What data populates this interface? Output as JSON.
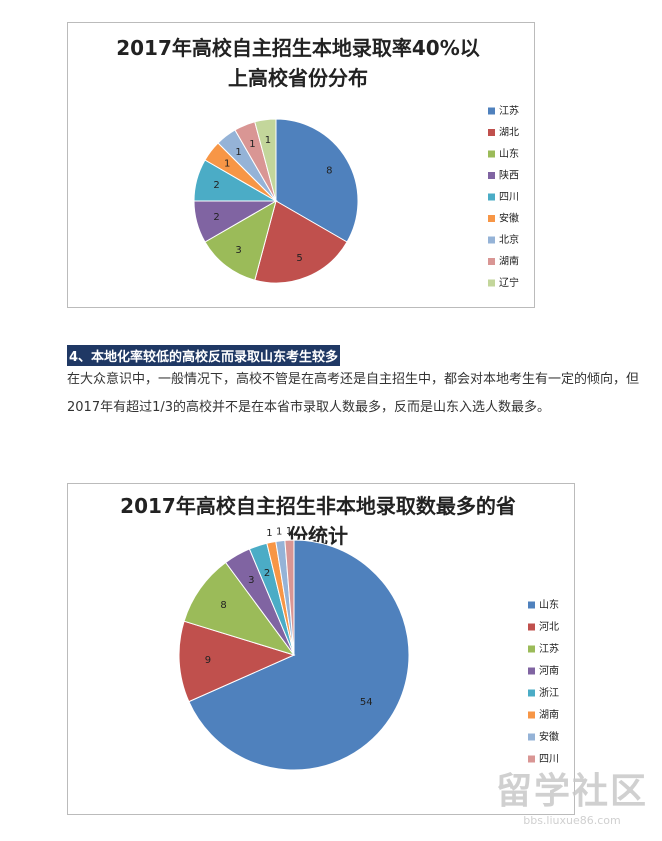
{
  "chart_data": [
    {
      "type": "pie",
      "title": "2017年高校自主招生本地录取率40%以上高校省份分布",
      "categories": [
        "江苏",
        "湖北",
        "山东",
        "陕西",
        "四川",
        "安徽",
        "北京",
        "湖南",
        "辽宁"
      ],
      "values": [
        8,
        5,
        3,
        2,
        2,
        1,
        1,
        1,
        1
      ],
      "colors": [
        "#4f81bd",
        "#c0504d",
        "#9bbb59",
        "#8064a2",
        "#4bacc6",
        "#f79646",
        "#95b3d7",
        "#d99694",
        "#c3d69b"
      ],
      "legend": "right"
    },
    {
      "type": "pie",
      "title": "2017年高校自主招生非本地录取数最多的省份统计",
      "categories": [
        "山东",
        "河北",
        "江苏",
        "河南",
        "浙江",
        "湖南",
        "安徽",
        "四川"
      ],
      "values": [
        54,
        9,
        8,
        3,
        2,
        1,
        1,
        1
      ],
      "colors": [
        "#4f81bd",
        "#c0504d",
        "#9bbb59",
        "#8064a2",
        "#4bacc6",
        "#f79646",
        "#95b3d7",
        "#d99694"
      ],
      "legend": "right"
    }
  ],
  "section": {
    "heading": "4、本地化率较低的高校反而录取山东考生较多",
    "paragraph": "在大众意识中，一般情况下，高校不管是在高考还是自主招生中，都会对本地考生有一定的倾向，但2017年有超过1/3的高校并不是在本省市录取人数最多，反而是山东入选人数最多。"
  },
  "watermark": {
    "text": "留学社区",
    "url": "bbs.liuxue86.com"
  }
}
